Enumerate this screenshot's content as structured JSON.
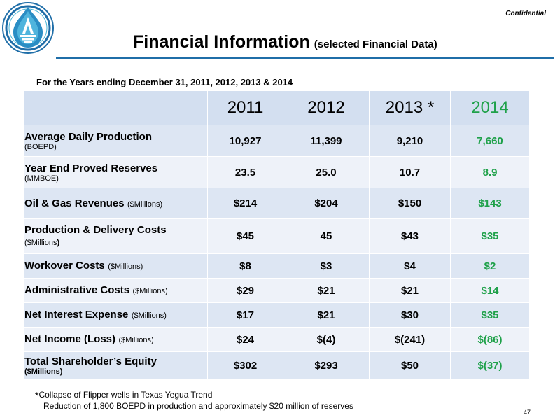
{
  "header": {
    "confidential": "Confidential",
    "title": "Financial Information",
    "subtitle": "(selected Financial Data)",
    "logo_icon": "company-logo-icon",
    "accent_color": "#1f6ea8"
  },
  "table": {
    "heading": "For the Years ending December 31, 2011, 2012, 2013 & 2014",
    "years": [
      "2011",
      "2012",
      "2013 *",
      "2014"
    ],
    "highlight_color": "#1fa14a",
    "rows": [
      {
        "label": "Average Daily Production",
        "unit": "(BOEPD)",
        "values": [
          "10,927",
          "11,399",
          "9,210",
          "7,660"
        ]
      },
      {
        "label": "Year End Proved Reserves",
        "unit": "(MMBOE)",
        "values": [
          "23.5",
          "25.0",
          "10.7",
          "8.9"
        ]
      },
      {
        "label": "Oil & Gas Revenues",
        "unit": "($Millions)",
        "values": [
          "$214",
          "$204",
          "$150",
          "$143"
        ]
      },
      {
        "label": "Production & Delivery Costs",
        "unit": "($Millions",
        "unit_tail": ")",
        "values": [
          "$45",
          "45",
          "$43",
          "$35"
        ]
      },
      {
        "label": "Workover Costs",
        "unit": "($Millions)",
        "values": [
          "$8",
          "$3",
          "$4",
          "$2"
        ]
      },
      {
        "label": "Administrative Costs",
        "unit": "($Millions)",
        "values": [
          "$29",
          "$21",
          "$21",
          "$14"
        ]
      },
      {
        "label": "Net Interest Expense",
        "unit": "($Millions)",
        "values": [
          "$17",
          "$21",
          "$30",
          "$35"
        ]
      },
      {
        "label": "Net Income (Loss)",
        "unit": "($Millions)",
        "values": [
          "$24",
          "$(4)",
          "$(241)",
          "$(86)"
        ]
      },
      {
        "label": "Total Shareholder’s Equity",
        "unit": "($Millions)",
        "values": [
          "$302",
          "$293",
          "$50",
          "$(37)"
        ]
      }
    ]
  },
  "footnotes": {
    "marker": "*",
    "line1": "Collapse of Flipper wells in Texas Yegua Trend",
    "line2": "Reduction of 1,800 BOEPD in production and approximately $20 million of reserves"
  },
  "page_number": "47"
}
